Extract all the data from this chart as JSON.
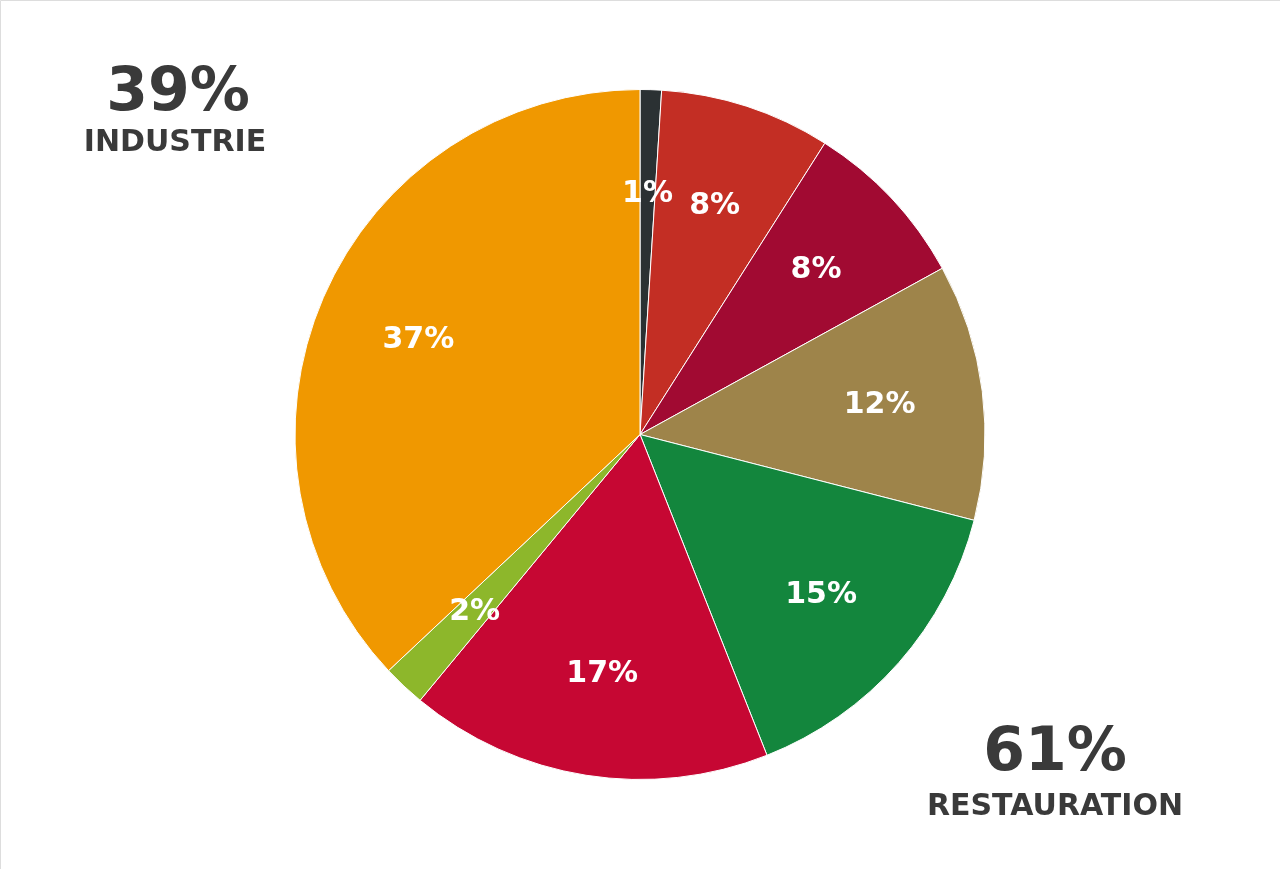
{
  "chart_data": {
    "type": "pie",
    "categories": [
      null,
      null,
      null,
      null,
      null,
      null,
      null,
      null
    ],
    "values": [
      1,
      8,
      8,
      12,
      15,
      17,
      2,
      37
    ],
    "colors": [
      "#2b3133",
      "#c32e24",
      "#a10a32",
      "#9e844a",
      "#13863d",
      "#c60733",
      "#8db72b",
      "#f09800"
    ],
    "value_labels": [
      "1%",
      "8%",
      "8%",
      "12%",
      "15%",
      "17%",
      "2%",
      "37%"
    ],
    "annotations": [
      "39%",
      "INDUSTRIE",
      "61%",
      "RESTAURATION"
    ]
  }
}
